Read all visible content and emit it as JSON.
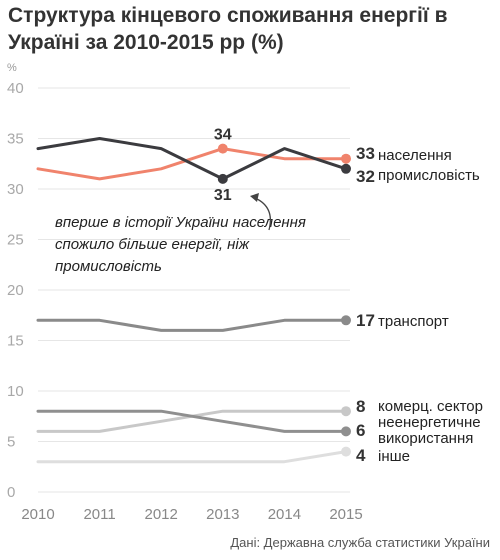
{
  "title": "Структура кінцевого споживання енергії в Україні за 2010-2015 рр (%)",
  "source": "Дані: Державна служба статистики України",
  "chart_data": {
    "type": "line",
    "y_unit": "%",
    "x": [
      "2010",
      "2011",
      "2012",
      "2013",
      "2014",
      "2015"
    ],
    "ylim": [
      0,
      40
    ],
    "y_ticks": [
      0,
      5,
      10,
      15,
      20,
      25,
      30,
      35,
      40
    ],
    "grid": true,
    "series": [
      {
        "name": "населення",
        "color": "#f0836c",
        "values": [
          32,
          31,
          32,
          34,
          33,
          33
        ],
        "end_label": "33"
      },
      {
        "name": "промисловість",
        "color": "#3b3b3f",
        "values": [
          34,
          35,
          34,
          31,
          34,
          32
        ],
        "end_label": "32"
      },
      {
        "name": "транспорт",
        "color": "#8a8a8a",
        "values": [
          17,
          17,
          16,
          16,
          17,
          17
        ],
        "end_label": "17"
      },
      {
        "name": "комерц. сектор",
        "color": "#c8c8c8",
        "values": [
          6,
          6,
          7,
          8,
          8,
          8
        ],
        "end_label": "8"
      },
      {
        "name": "неенергетичне використання",
        "color": "#8f8f8f",
        "values": [
          8,
          8,
          8,
          7,
          6,
          6
        ],
        "end_label": "6"
      },
      {
        "name": "інше",
        "color": "#dedede",
        "values": [
          3,
          3,
          3,
          3,
          3,
          4
        ],
        "end_label": "4"
      }
    ],
    "point_labels": [
      {
        "series": "населення",
        "year": "2013",
        "text": "34"
      },
      {
        "series": "промисловість",
        "year": "2013",
        "text": "31"
      }
    ],
    "annotation": "вперше в історії України населення спожило більше енергії, ніж промисловість"
  }
}
